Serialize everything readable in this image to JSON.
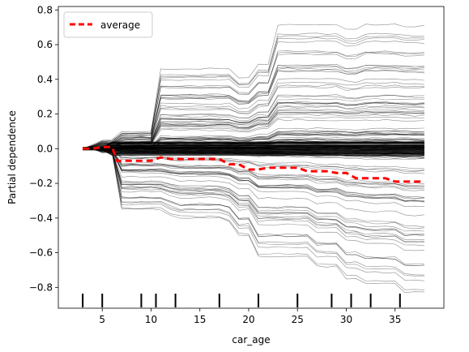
{
  "chart_data": {
    "type": "line",
    "title": "",
    "xlabel": "car_age",
    "ylabel": "Partial dependence",
    "xlim": [
      0.5,
      40.0
    ],
    "ylim": [
      -0.92,
      0.82
    ],
    "x_ticks": [
      5,
      10,
      15,
      20,
      25,
      30,
      35
    ],
    "y_ticks": [
      -0.8,
      -0.6,
      -0.4,
      -0.2,
      0.0,
      0.2,
      0.4,
      0.6,
      0.8
    ],
    "x_tick_labels": [
      "5",
      "10",
      "15",
      "20",
      "25",
      "30",
      "35"
    ],
    "y_tick_labels": [
      "−0.8",
      "−0.6",
      "−0.4",
      "−0.2",
      "0.0",
      "0.2",
      "0.4",
      "0.6",
      "0.8"
    ],
    "grid": false,
    "legend": {
      "position": "top-left",
      "entries": [
        "average"
      ]
    },
    "series": [
      {
        "name": "average",
        "color": "#ff0000",
        "style": "dashed",
        "x": [
          3,
          4,
          5,
          6,
          6.5,
          7,
          8,
          9,
          10,
          11,
          12,
          13,
          14,
          15,
          16,
          17,
          18,
          19,
          20,
          21,
          22,
          23,
          24,
          25,
          26,
          27,
          28,
          29,
          30,
          31,
          32,
          33,
          34,
          35,
          36,
          37,
          38
        ],
        "values": [
          0.0,
          0.0,
          0.01,
          0.01,
          -0.07,
          -0.07,
          -0.07,
          -0.07,
          -0.07,
          -0.05,
          -0.06,
          -0.06,
          -0.06,
          -0.06,
          -0.06,
          -0.06,
          -0.09,
          -0.09,
          -0.12,
          -0.12,
          -0.11,
          -0.11,
          -0.11,
          -0.11,
          -0.13,
          -0.13,
          -0.13,
          -0.14,
          -0.14,
          -0.17,
          -0.17,
          -0.17,
          -0.17,
          -0.19,
          -0.19,
          -0.19,
          -0.19
        ]
      }
    ],
    "ice_curves": {
      "color": "#000000",
      "description_range": {
        "x": [
          3,
          38
        ],
        "upper_envelope": [
          0.0,
          0.02,
          0.05,
          0.05,
          0.1,
          0.1,
          0.1,
          0.1,
          0.47,
          0.47,
          0.47,
          0.47,
          0.47,
          0.47,
          0.47,
          0.47,
          0.42,
          0.42,
          0.5,
          0.5,
          0.73,
          0.73,
          0.73,
          0.73,
          0.73,
          0.73,
          0.73,
          0.7,
          0.7,
          0.73,
          0.73,
          0.73,
          0.73,
          0.72,
          0.72,
          0.72
        ],
        "lower_envelope": [
          0.0,
          0.0,
          -0.02,
          -0.02,
          -0.35,
          -0.35,
          -0.35,
          -0.35,
          -0.35,
          -0.38,
          -0.4,
          -0.4,
          -0.4,
          -0.4,
          -0.4,
          -0.42,
          -0.5,
          -0.5,
          -0.62,
          -0.62,
          -0.62,
          -0.62,
          -0.62,
          -0.62,
          -0.68,
          -0.68,
          -0.68,
          -0.75,
          -0.75,
          -0.78,
          -0.78,
          -0.78,
          -0.78,
          -0.83,
          -0.83,
          -0.83
        ]
      }
    },
    "rug_x": [
      3,
      5,
      9,
      10.5,
      12.5,
      17,
      21,
      25,
      28.5,
      30.5,
      32.5,
      35.5
    ]
  }
}
